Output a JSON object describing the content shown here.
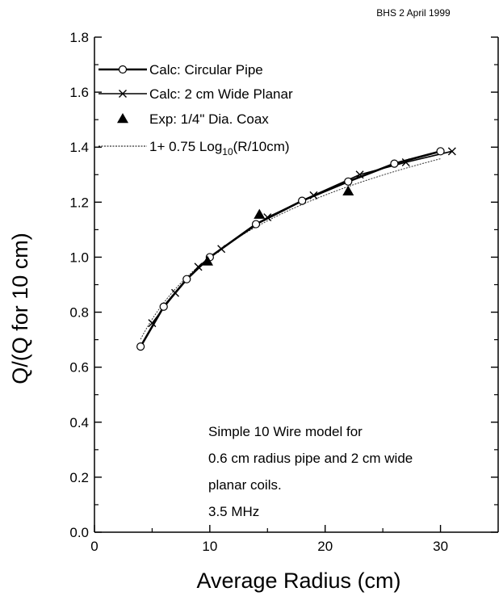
{
  "header_note": "BHS 2 April 1999",
  "annotation": {
    "lines": [
      "Simple 10 Wire model for",
      "0.6 cm radius pipe and 2 cm wide",
      "planar coils.",
      "3.5 MHz"
    ]
  },
  "chart_data": {
    "type": "line",
    "xlabel": "Average Radius (cm)",
    "ylabel": "Q/(Q for 10 cm)",
    "xlim": [
      0,
      35
    ],
    "ylim": [
      0.0,
      1.8
    ],
    "x_ticks": [
      0,
      10,
      20,
      30
    ],
    "x_tick_labels": [
      "0",
      "10",
      "20",
      "30"
    ],
    "y_ticks": [
      0.0,
      0.2,
      0.4,
      0.6,
      0.8,
      1.0,
      1.2,
      1.4,
      1.6,
      1.8
    ],
    "y_tick_labels": [
      "0.0",
      "0.2",
      "0.4",
      "0.6",
      "0.8",
      "1.0",
      "1.2",
      "1.4",
      "1.6",
      "1.8"
    ],
    "grid": false,
    "legend_position": "top-left",
    "series": [
      {
        "name": "Calc: Circular Pipe",
        "marker": "open-circle",
        "line": "solid-thick",
        "x": [
          4,
          6,
          8,
          10,
          14,
          18,
          22,
          26,
          30
        ],
        "y": [
          0.675,
          0.82,
          0.92,
          1.0,
          1.12,
          1.205,
          1.275,
          1.34,
          1.385
        ]
      },
      {
        "name": "Calc: 2 cm Wide Planar",
        "marker": "x",
        "line": "solid",
        "x": [
          5,
          7,
          9,
          11,
          15,
          19,
          23,
          27,
          31
        ],
        "y": [
          0.76,
          0.87,
          0.965,
          1.03,
          1.145,
          1.225,
          1.3,
          1.345,
          1.385
        ]
      },
      {
        "name": "Exp: 1/4\" Dia. Coax",
        "marker": "filled-triangle",
        "line": "none",
        "x": [
          9.8,
          14.3,
          22
        ],
        "y": [
          0.985,
          1.155,
          1.24
        ]
      },
      {
        "name": "1+ 0.75 Log10(R/10cm)",
        "legend_parts": [
          "1+ 0.75 Log",
          "10",
          "(R/10cm)"
        ],
        "marker": "none",
        "line": "dotted-thin",
        "function": "1+0.75*log10(x/10)",
        "x_range": [
          4,
          30
        ]
      }
    ]
  }
}
